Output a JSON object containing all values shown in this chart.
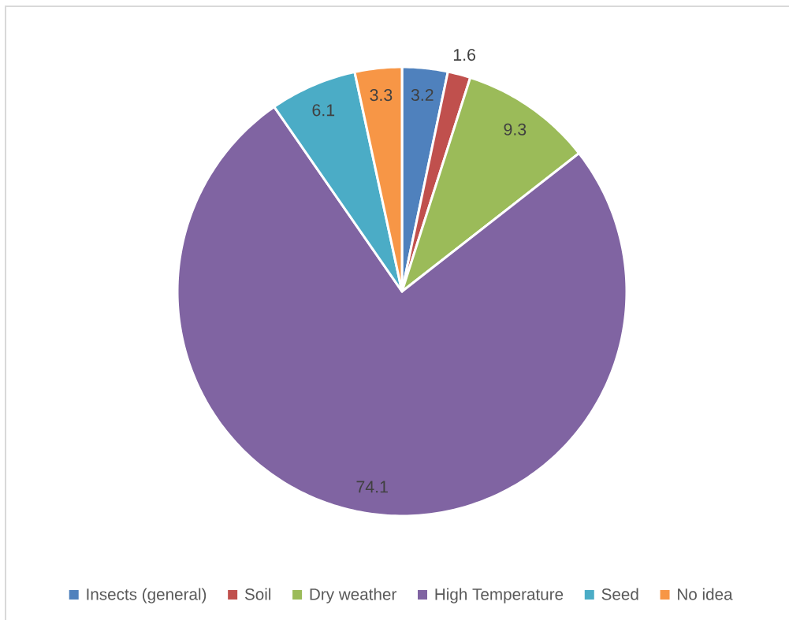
{
  "chart_data": {
    "type": "pie",
    "categories": [
      "Insects (general)",
      "Soil",
      "Dry weather",
      "High Temperature",
      "Seed",
      "No idea"
    ],
    "values": [
      3.2,
      1.6,
      9.3,
      74.1,
      6.1,
      3.3
    ],
    "colors": [
      "#4f81bd",
      "#c0504d",
      "#9bbb59",
      "#8064a2",
      "#4bacc6",
      "#f79646"
    ],
    "data_labels": true,
    "legend": "bottom"
  }
}
